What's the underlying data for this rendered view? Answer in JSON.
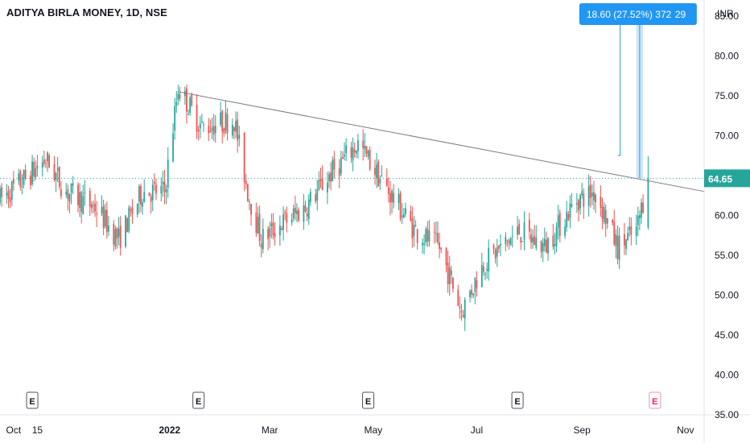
{
  "header": {
    "title": "ADITYA BIRLA MONEY, 1D, NSE"
  },
  "axis": {
    "currency": "INR"
  },
  "measure": {
    "label": "18.60 (27.52%) 372",
    "suffix": "29",
    "box_color": "#2196f3"
  },
  "price_tag": {
    "value": "64.65",
    "color": "#26a69a"
  },
  "colors": {
    "up": "#26a69a",
    "down": "#ef5350",
    "trend": "#787b86",
    "measure_fill": "#bbdefb",
    "measure_line": "#2196f3"
  },
  "chart_data": {
    "type": "candlestick",
    "title": "ADITYA BIRLA MONEY, 1D, NSE",
    "ylabel": "INR",
    "ylim": [
      35,
      87
    ],
    "yticks": [
      "85.00",
      "80.00",
      "75.00",
      "70.00",
      "65.00",
      "60.00",
      "55.00",
      "50.00",
      "45.00",
      "40.00",
      "35.00"
    ],
    "xticks": [
      "Oct",
      "15",
      "2022",
      "Mar",
      "May",
      "Jul",
      "Sep",
      "Nov"
    ],
    "x_range": [
      "2021-09-23",
      "2022-11-12"
    ],
    "x_tick_dates": [
      "2021-10-01",
      "2021-10-15",
      "2022-01-01",
      "2022-03-01",
      "2022-05-01",
      "2022-07-01",
      "2022-09-01",
      "2022-11-01"
    ],
    "price_path": [
      [
        "2021-09-23",
        62
      ],
      [
        "2021-10-10",
        65
      ],
      [
        "2021-10-20",
        67
      ],
      [
        "2021-11-01",
        63
      ],
      [
        "2021-11-18",
        61
      ],
      [
        "2021-12-02",
        57
      ],
      [
        "2021-12-16",
        63
      ],
      [
        "2021-12-29",
        63
      ],
      [
        "2022-01-06",
        76
      ],
      [
        "2022-01-20",
        71
      ],
      [
        "2022-02-08",
        72
      ],
      [
        "2022-02-16",
        63
      ],
      [
        "2022-02-24",
        57
      ],
      [
        "2022-03-08",
        59
      ],
      [
        "2022-03-22",
        61
      ],
      [
        "2022-04-05",
        65
      ],
      [
        "2022-04-22",
        69
      ],
      [
        "2022-05-10",
        63
      ],
      [
        "2022-05-26",
        58
      ],
      [
        "2022-06-09",
        56
      ],
      [
        "2022-06-22",
        48
      ],
      [
        "2022-07-05",
        54
      ],
      [
        "2022-07-26",
        58
      ],
      [
        "2022-08-10",
        56
      ],
      [
        "2022-08-29",
        62
      ],
      [
        "2022-09-09",
        63
      ],
      [
        "2022-09-22",
        56
      ],
      [
        "2022-10-03",
        58
      ],
      [
        "2022-10-10",
        64.65
      ]
    ],
    "last_price": 64.65,
    "trendline": {
      "start": [
        "2022-01-06",
        75.5
      ],
      "end": [
        "2022-11-12",
        63
      ]
    },
    "measurement": {
      "start_date": "2022-10-03",
      "end_date": "2022-10-07",
      "from": 67.5,
      "to": 86.2,
      "change": "18.60 (27.52%) 372 29"
    },
    "earnings_markers": [
      "2021-10-12",
      "2022-01-18",
      "2022-04-28",
      "2022-07-25",
      "2022-10-14"
    ],
    "earnings_label": "E",
    "grid": false
  }
}
